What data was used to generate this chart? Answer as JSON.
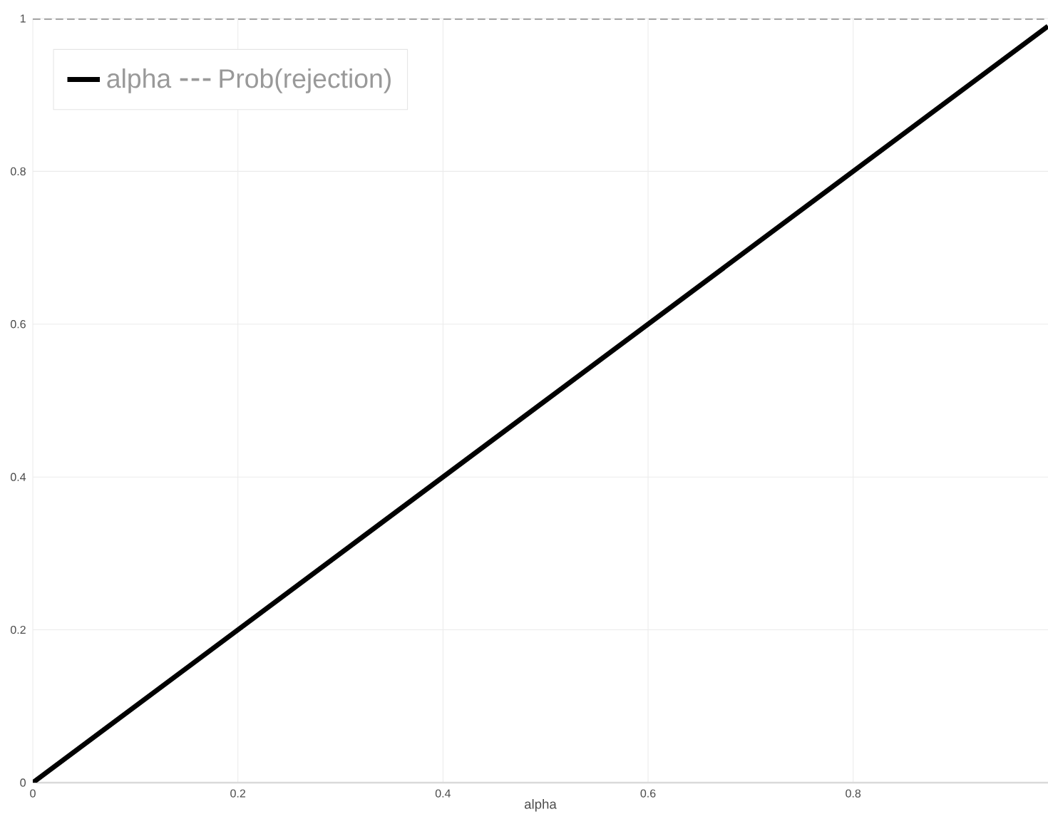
{
  "chart_data": {
    "type": "line",
    "xlabel": "alpha",
    "xlim": [
      0,
      0.99
    ],
    "ylim": [
      0,
      1
    ],
    "xticks": [
      0,
      0.2,
      0.4,
      0.6,
      0.8
    ],
    "yticks": [
      0,
      0.2,
      0.4,
      0.6,
      0.8,
      1
    ],
    "x": [
      0,
      0.99
    ],
    "grid": true,
    "legend": "top left",
    "marker": "none",
    "series": [
      {
        "name": "alpha",
        "color": "#000000",
        "line_style": "solid",
        "values": [
          0,
          0.99
        ]
      },
      {
        "name": "Prob(rejection)",
        "color": "#999999",
        "line_style": "dashed",
        "values": [
          1,
          1
        ]
      }
    ]
  }
}
